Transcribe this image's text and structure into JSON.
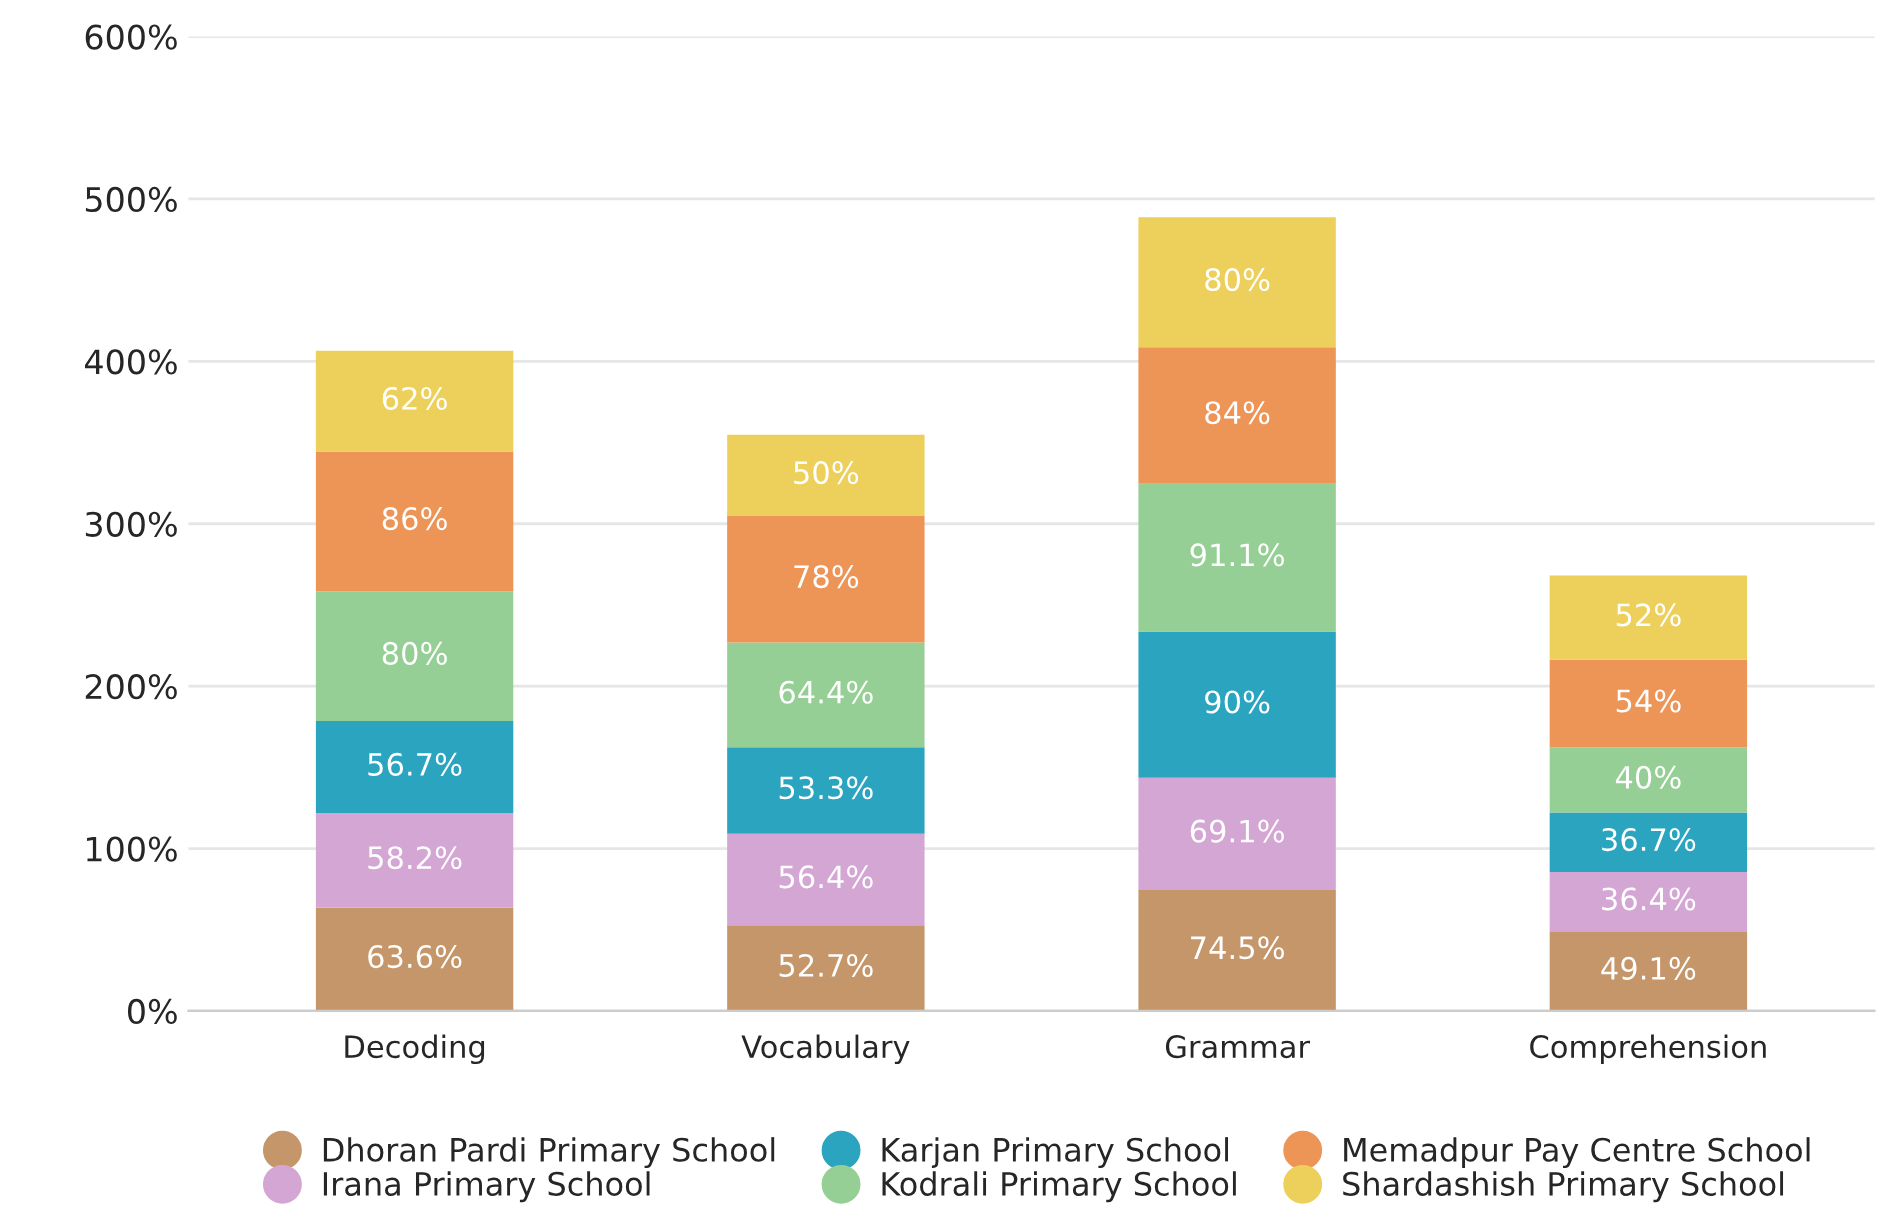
{
  "chart_data": {
    "type": "bar",
    "stacked": true,
    "categories": [
      "Decoding",
      "Vocabulary",
      "Grammar",
      "Comprehension"
    ],
    "series": [
      {
        "name": "Dhoran Pardi Primary School",
        "color": "#c4966a",
        "values": [
          63.6,
          52.7,
          74.5,
          49.1
        ],
        "value_labels": [
          "63.6%",
          "52.7%",
          "74.5%",
          "49.1%"
        ]
      },
      {
        "name": "Irana Primary School",
        "color": "#d4a6d4",
        "values": [
          58.2,
          56.4,
          69.1,
          36.4
        ],
        "value_labels": [
          "58.2%",
          "56.4%",
          "69.1%",
          "36.4%"
        ]
      },
      {
        "name": "Karjan Primary School",
        "color": "#2ba4c0",
        "values": [
          56.7,
          53.3,
          90,
          36.7
        ],
        "value_labels": [
          "56.7%",
          "53.3%",
          "90%",
          "36.7%"
        ]
      },
      {
        "name": "Kodrali Primary School",
        "color": "#95cf95",
        "values": [
          80,
          64.4,
          91.1,
          40
        ],
        "value_labels": [
          "80%",
          "64.4%",
          "91.1%",
          "40%"
        ]
      },
      {
        "name": "Memadpur Pay Centre School",
        "color": "#ed9457",
        "values": [
          86,
          78,
          84,
          54
        ],
        "value_labels": [
          "86%",
          "78%",
          "84%",
          "54%"
        ]
      },
      {
        "name": "Shardashish Primary School",
        "color": "#ecd05b",
        "values": [
          62,
          50,
          80,
          52
        ],
        "value_labels": [
          "62%",
          "50%",
          "80%",
          "52%"
        ]
      }
    ],
    "ylim": [
      0,
      600
    ],
    "yticks": [
      {
        "value": 0,
        "label": "0%"
      },
      {
        "value": 100,
        "label": "100%"
      },
      {
        "value": 200,
        "label": "200%"
      },
      {
        "value": 300,
        "label": "300%"
      },
      {
        "value": 400,
        "label": "400%"
      },
      {
        "value": 500,
        "label": "500%"
      },
      {
        "value": 600,
        "label": "600%"
      }
    ],
    "grid": "y",
    "legend": "bottom"
  }
}
